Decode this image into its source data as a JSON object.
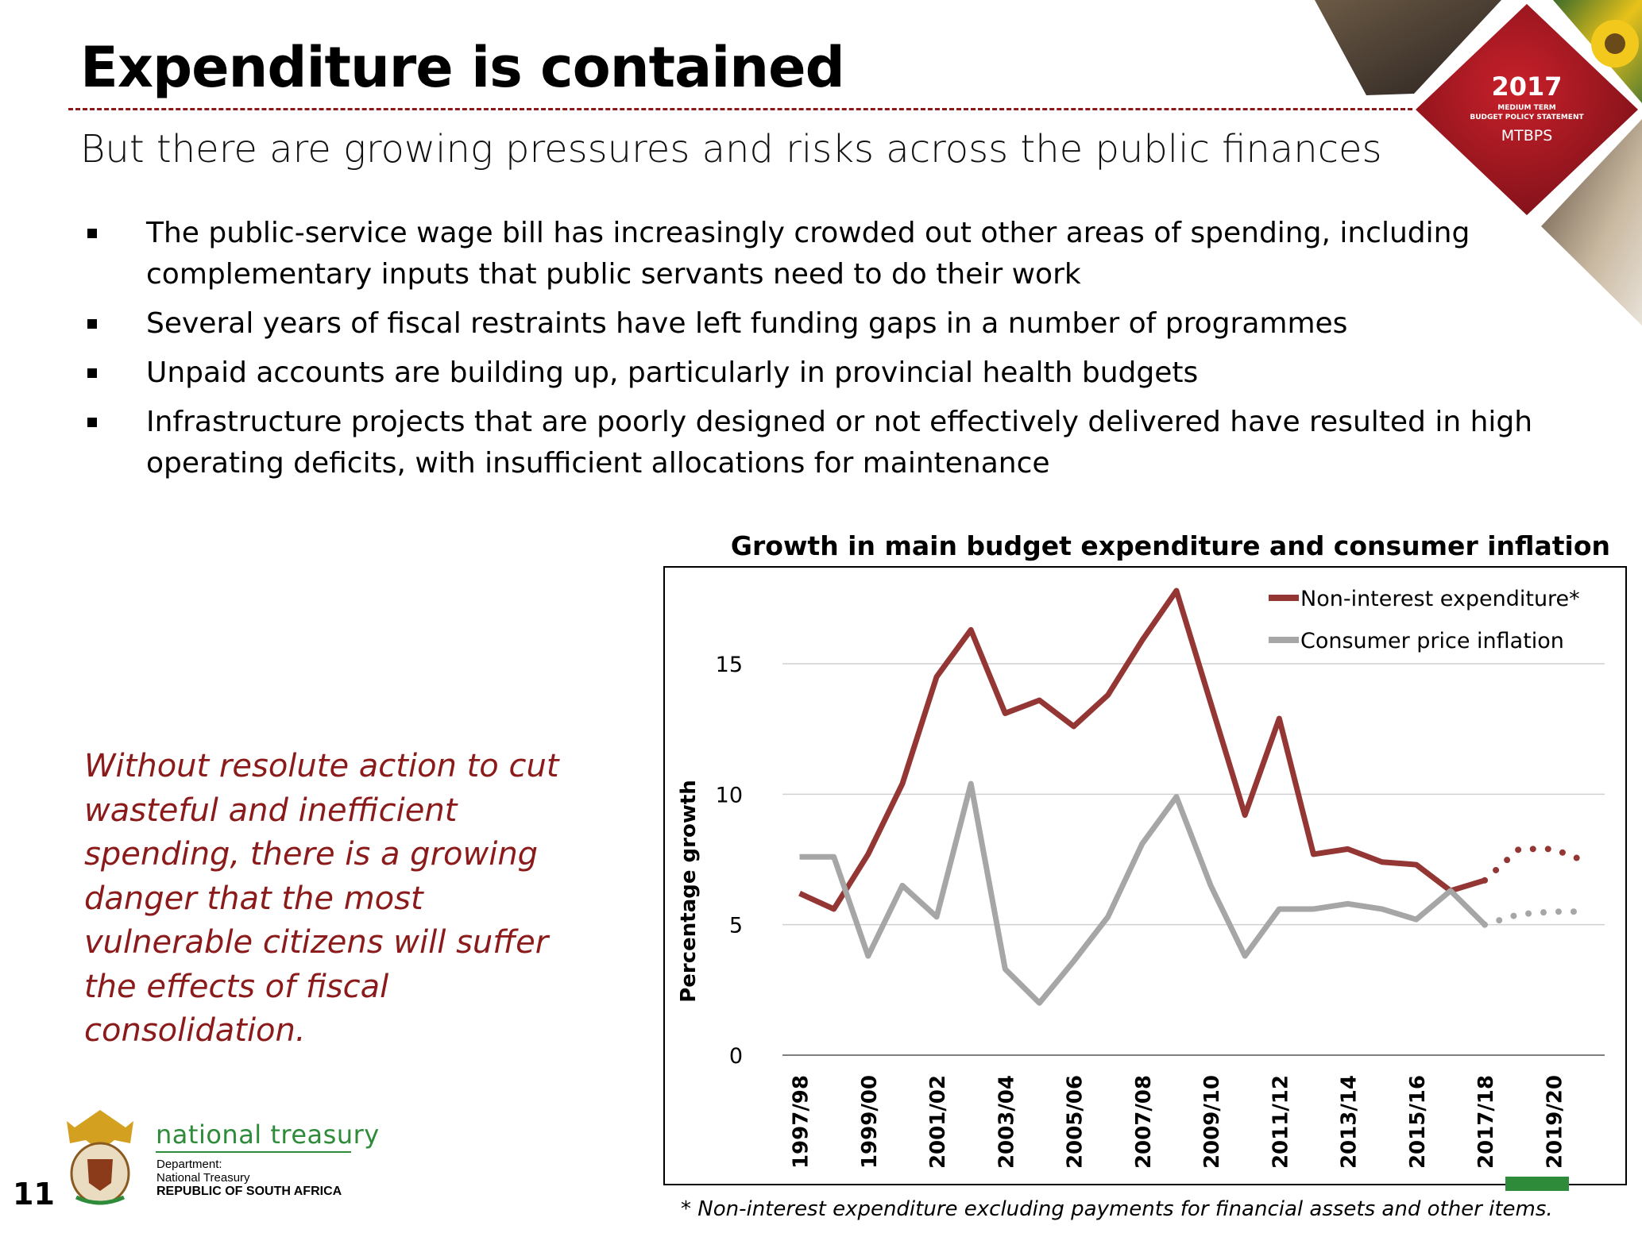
{
  "header": {
    "title": "Expenditure is contained",
    "subtitle": "But there are growing pressures and risks across the public finances"
  },
  "bullets": [
    "The public-service wage bill has increasingly crowded out other areas of spending, including complementary inputs that public servants need to do their work",
    "Several years of fiscal restraints have left funding gaps in a number of programmes",
    "Unpaid accounts are building up, particularly in provincial health budgets",
    "Infrastructure projects that are poorly designed or not effectively delivered have resulted in high operating deficits, with insufficient allocations for maintenance"
  ],
  "callout": "Without resolute action to cut wasteful and inefficient spending, there is a growing danger that the most vulnerable citizens will suffer the effects of fiscal consolidation.",
  "badge": {
    "year": "2017",
    "line1": "MEDIUM TERM",
    "line2": "BUDGET POLICY STATEMENT",
    "line3": "MTBPS"
  },
  "footer": {
    "page_number": "11",
    "org_name": "national treasury",
    "dept_label": "Department:",
    "dept_name": "National Treasury",
    "country": "REPUBLIC OF SOUTH AFRICA",
    "footnote": "* Non-interest expenditure excluding payments for financial assets and other items."
  },
  "colors": {
    "accent": "#8b1a1a",
    "expenditure": "#943634",
    "inflation": "#a6a6a6",
    "treasury_green": "#2e8b3a"
  },
  "chart_data": {
    "type": "line",
    "title": "Growth in main budget expenditure and consumer inflation",
    "ylabel": "Percentage growth",
    "xlabel": "",
    "ylim": [
      0,
      18
    ],
    "yticks": [
      0,
      5,
      10,
      15
    ],
    "grid": true,
    "legend": "top-right",
    "categories": [
      "1997/98",
      "1998/99",
      "1999/00",
      "2000/01",
      "2001/02",
      "2002/03",
      "2003/04",
      "2004/05",
      "2005/06",
      "2006/07",
      "2007/08",
      "2008/09",
      "2009/10",
      "2010/11",
      "2011/12",
      "2012/13",
      "2013/14",
      "2014/15",
      "2015/16",
      "2016/17",
      "2017/18",
      "2018/19",
      "2019/20",
      "2020/21"
    ],
    "xtick_labels": [
      "1997/98",
      "1999/00",
      "2001/02",
      "2003/04",
      "2005/06",
      "2007/08",
      "2009/10",
      "2011/12",
      "2013/14",
      "2015/16",
      "2017/18",
      "2019/20"
    ],
    "forecast_from": "2017/18",
    "series": [
      {
        "name": "Non-interest expenditure*",
        "color": "#943634",
        "values": [
          6.2,
          5.6,
          7.7,
          10.4,
          14.5,
          16.3,
          13.1,
          13.6,
          12.6,
          13.8,
          15.9,
          17.8,
          13.5,
          9.2,
          12.9,
          7.7,
          7.9,
          7.4,
          7.3,
          6.3,
          6.7,
          7.9,
          7.9,
          7.4
        ]
      },
      {
        "name": "Consumer price inflation",
        "color": "#a6a6a6",
        "values": [
          7.6,
          7.6,
          3.8,
          6.5,
          5.3,
          10.4,
          3.3,
          2.0,
          3.6,
          5.3,
          8.1,
          9.9,
          6.5,
          3.8,
          5.6,
          5.6,
          5.8,
          5.6,
          5.2,
          6.3,
          5.0,
          5.4,
          5.5,
          5.5
        ]
      }
    ]
  }
}
